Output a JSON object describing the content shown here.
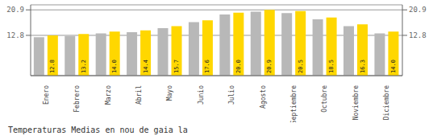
{
  "chart_data": {
    "type": "bar",
    "title": "Temperaturas Medias en nou de gaia la",
    "categories": [
      "Enero",
      "Febrero",
      "Marzo",
      "Abril",
      "Mayo",
      "Junio",
      "Julio",
      "Agosto",
      "Septiembre",
      "Octubre",
      "Noviembre",
      "Diciembre"
    ],
    "series": [
      {
        "color": "#B8B8B8",
        "values": [
          12.2,
          12.6,
          13.4,
          13.8,
          15.1,
          17.0,
          19.4,
          20.3,
          19.9,
          17.9,
          15.7,
          13.4
        ]
      },
      {
        "color": "#FFD700",
        "values": [
          12.8,
          13.2,
          14.0,
          14.4,
          15.7,
          17.6,
          20.0,
          20.9,
          20.5,
          18.5,
          16.3,
          14.0
        ],
        "value_labels": [
          "12.8",
          "13.2",
          "14.0",
          "14.4",
          "15.7",
          "17.6",
          "20.0",
          "20.9",
          "20.5",
          "18.5",
          "16.3",
          "14.0"
        ],
        "data_labels": true
      }
    ],
    "ylim": [
      0,
      22.5
    ],
    "yticks": [
      12.8,
      20.9
    ],
    "y2lim": [
      0,
      22.5
    ],
    "y2ticks": [
      12.8,
      20.9
    ],
    "grid": true
  }
}
